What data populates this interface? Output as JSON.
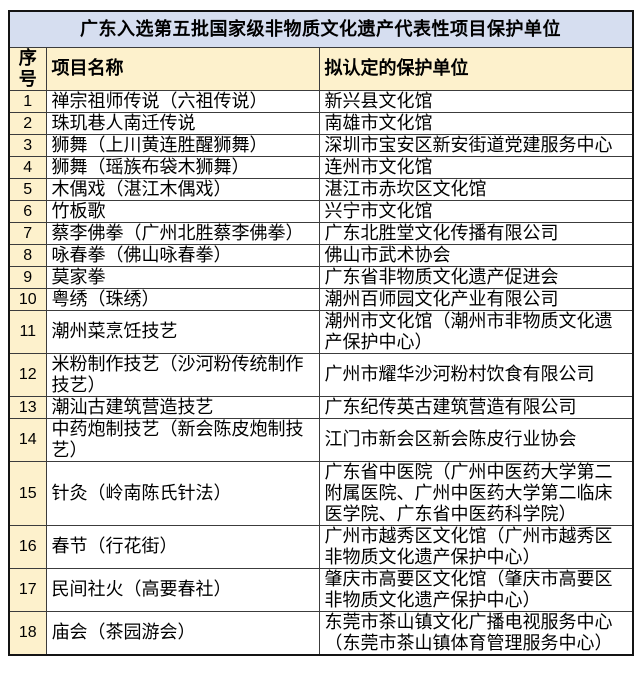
{
  "table": {
    "title": "广东入选第五批国家级非物质文化遗产代表性项目保护单位",
    "columns": [
      "序号",
      "项目名称",
      "拟认定的保护单位"
    ],
    "rows": [
      {
        "no": "1",
        "project": "禅宗祖师传说（六祖传说）",
        "unit": "新兴县文化馆"
      },
      {
        "no": "2",
        "project": "珠玑巷人南迁传说",
        "unit": "南雄市文化馆"
      },
      {
        "no": "3",
        "project": "狮舞（上川黄连胜醒狮舞）",
        "unit": "深圳市宝安区新安街道党建服务中心"
      },
      {
        "no": "4",
        "project": "狮舞（瑶族布袋木狮舞）",
        "unit": "连州市文化馆"
      },
      {
        "no": "5",
        "project": "木偶戏（湛江木偶戏）",
        "unit": "湛江市赤坎区文化馆"
      },
      {
        "no": "6",
        "project": "竹板歌",
        "unit": "兴宁市文化馆"
      },
      {
        "no": "7",
        "project": "蔡李佛拳（广州北胜蔡李佛拳）",
        "unit": "广东北胜堂文化传播有限公司"
      },
      {
        "no": "8",
        "project": "咏春拳（佛山咏春拳）",
        "unit": "佛山市武术协会"
      },
      {
        "no": "9",
        "project": "莫家拳",
        "unit": "广东省非物质文化遗产促进会"
      },
      {
        "no": "10",
        "project": "粤绣（珠绣）",
        "unit": "潮州百师园文化产业有限公司"
      },
      {
        "no": "11",
        "project": "潮州菜烹饪技艺",
        "unit": "潮州市文化馆（潮州市非物质文化遗产保护中心）"
      },
      {
        "no": "12",
        "project": "米粉制作技艺（沙河粉传统制作技艺）",
        "unit": "广州市耀华沙河粉村饮食有限公司"
      },
      {
        "no": "13",
        "project": "潮汕古建筑营造技艺",
        "unit": "广东纪传英古建筑营造有限公司"
      },
      {
        "no": "14",
        "project": "中药炮制技艺（新会陈皮炮制技艺）",
        "unit": "江门市新会区新会陈皮行业协会"
      },
      {
        "no": "15",
        "project": "针灸（岭南陈氏针法）",
        "unit": "广东省中医院（广州中医药大学第二附属医院、广州中医药大学第二临床医学院、广东省中医药科学院）"
      },
      {
        "no": "16",
        "project": "春节（行花街）",
        "unit": "广州市越秀区文化馆（广州市越秀区非物质文化遗产保护中心）"
      },
      {
        "no": "17",
        "project": "民间社火（高要春社）",
        "unit": "肇庆市高要区文化馆（肇庆市高要区非物质文化遗产保护中心）"
      },
      {
        "no": "18",
        "project": "庙会（茶园游会）",
        "unit": "东莞市茶山镇文化广播电视服务中心（东莞市茶山镇体育管理服务中心）"
      }
    ]
  },
  "colors": {
    "title_bg": "#d6def0",
    "header_bg": "#fdf1cc",
    "border": "#3c3c3c",
    "outer_border": "#141414",
    "text": "#000000",
    "page_bg": "#ffffff"
  },
  "chart_data": {
    "type": "table",
    "title": "广东入选第五批国家级非物质文化遗产代表性项目保护单位",
    "columns": [
      "序号",
      "项目名称",
      "拟认定的保护单位"
    ],
    "rows": [
      [
        "1",
        "禅宗祖师传说（六祖传说）",
        "新兴县文化馆"
      ],
      [
        "2",
        "珠玑巷人南迁传说",
        "南雄市文化馆"
      ],
      [
        "3",
        "狮舞（上川黄连胜醒狮舞）",
        "深圳市宝安区新安街道党建服务中心"
      ],
      [
        "4",
        "狮舞（瑶族布袋木狮舞）",
        "连州市文化馆"
      ],
      [
        "5",
        "木偶戏（湛江木偶戏）",
        "湛江市赤坎区文化馆"
      ],
      [
        "6",
        "竹板歌",
        "兴宁市文化馆"
      ],
      [
        "7",
        "蔡李佛拳（广州北胜蔡李佛拳）",
        "广东北胜堂文化传播有限公司"
      ],
      [
        "8",
        "咏春拳（佛山咏春拳）",
        "佛山市武术协会"
      ],
      [
        "9",
        "莫家拳",
        "广东省非物质文化遗产促进会"
      ],
      [
        "10",
        "粤绣（珠绣）",
        "潮州百师园文化产业有限公司"
      ],
      [
        "11",
        "潮州菜烹饪技艺",
        "潮州市文化馆（潮州市非物质文化遗产保护中心）"
      ],
      [
        "12",
        "米粉制作技艺（沙河粉传统制作技艺）",
        "广州市耀华沙河粉村饮食有限公司"
      ],
      [
        "13",
        "潮汕古建筑营造技艺",
        "广东纪传英古建筑营造有限公司"
      ],
      [
        "14",
        "中药炮制技艺（新会陈皮炮制技艺）",
        "江门市新会区新会陈皮行业协会"
      ],
      [
        "15",
        "针灸（岭南陈氏针法）",
        "广东省中医院（广州中医药大学第二附属医院、广州中医药大学第二临床医学院、广东省中医药科学院）"
      ],
      [
        "16",
        "春节（行花街）",
        "广州市越秀区文化馆（广州市越秀区非物质文化遗产保护中心）"
      ],
      [
        "17",
        "民间社火（高要春社）",
        "肇庆市高要区文化馆（肇庆市高要区非物质文化遗产保护中心）"
      ],
      [
        "18",
        "庙会（茶园游会）",
        "东莞市茶山镇文化广播电视服务中心（东莞市茶山镇体育管理服务中心）"
      ]
    ]
  }
}
